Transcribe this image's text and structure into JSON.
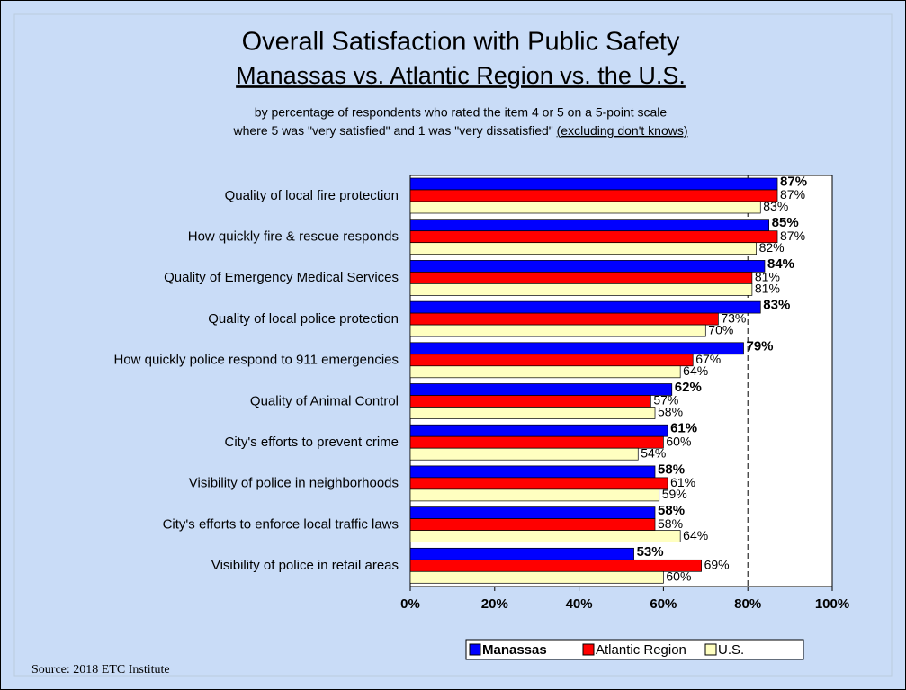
{
  "chart_data": {
    "type": "hbar",
    "title": "Overall Satisfaction with Public Safety",
    "subtitle": "Manassas vs. Atlantic Region vs. the U.S.",
    "note_line1": "by percentage of respondents who rated the item 4 or 5 on a 5-point scale",
    "note_line2": "where 5 was \"very satisfied\" and 1 was \"very dissatisfied\"",
    "note_line2_underlined": "(excluding don't knows)",
    "source": "Source:  2018 ETC Institute",
    "categories": [
      "Quality of local fire protection",
      "How quickly fire & rescue responds",
      "Quality of Emergency Medical Services",
      "Quality of local police protection",
      "How quickly police respond to 911 emergencies",
      "Quality of Animal Control",
      "City's efforts to prevent crime",
      "Visibility of police in neighborhoods",
      "City's efforts to enforce local traffic laws",
      "Visibility of police in retail areas"
    ],
    "series": [
      {
        "name": "Manassas",
        "color": "#0000ff",
        "values": [
          87,
          85,
          84,
          83,
          79,
          62,
          61,
          58,
          58,
          53
        ],
        "value_labels": [
          "87%",
          "85%",
          "84%",
          "83%",
          "79%",
          "62%",
          "61%",
          "58%",
          "58%",
          "53%"
        ]
      },
      {
        "name": "Atlantic Region",
        "color": "#ff0000",
        "values": [
          87,
          87,
          81,
          73,
          67,
          57,
          60,
          61,
          58,
          69
        ],
        "value_labels": [
          "87%",
          "87%",
          "81%",
          "73%",
          "67%",
          "57%",
          "60%",
          "61%",
          "58%",
          "69%"
        ]
      },
      {
        "name": "U.S.",
        "color": "#ffffc0",
        "values": [
          83,
          82,
          81,
          70,
          64,
          58,
          54,
          59,
          64,
          60
        ],
        "value_labels": [
          "83%",
          "82%",
          "81%",
          "70%",
          "64%",
          "58%",
          "54%",
          "59%",
          "64%",
          "60%"
        ]
      }
    ],
    "xlim": [
      0,
      100
    ],
    "xticks": [
      {
        "value": 0,
        "label": "0%"
      },
      {
        "value": 20,
        "label": "20%"
      },
      {
        "value": 40,
        "label": "40%"
      },
      {
        "value": 60,
        "label": "60%"
      },
      {
        "value": 80,
        "label": "80%"
      },
      {
        "value": 100,
        "label": "100%"
      }
    ],
    "reference_line": 80
  }
}
